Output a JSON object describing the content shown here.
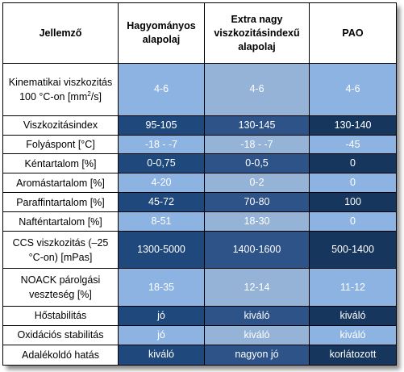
{
  "header": {
    "col1": "Jellemző",
    "col2": "Hagyományos alapolaj",
    "col3": "Extra nagy viszkozitásindexű alapolaj",
    "col4": "PAO"
  },
  "rows": [
    {
      "label_pre": "Kinematikai viszkozitás 100 °C-on [mm",
      "label_sup": "2",
      "label_post": "/s]",
      "values": [
        "4-6",
        "4-6",
        "4-6"
      ]
    },
    {
      "label": "Viszkozitásindex",
      "values": [
        "95-105",
        "130-145",
        "130-140"
      ]
    },
    {
      "label": "Folyáspont [°C]",
      "values": [
        "-18 - -7",
        "-18 - -7",
        "-45"
      ]
    },
    {
      "label": "Kéntartalom [%]",
      "values": [
        "0-0,75",
        "0-0,5",
        "0"
      ]
    },
    {
      "label": "Aromástartalom [%]",
      "values": [
        "4-20",
        "0-2",
        "0"
      ]
    },
    {
      "label": "Paraffintartalom [%]",
      "values": [
        "45-72",
        "70-80",
        "100"
      ]
    },
    {
      "label": "Nafténtartalom [%]",
      "values": [
        "8-51",
        "18-30",
        "0"
      ]
    },
    {
      "label": "CCS viszkozitás (–25 °C-on) [mPas]",
      "values": [
        "1300-5000",
        "1400-1600",
        "500-1400"
      ]
    },
    {
      "label": "NOACK párolgási veszteség [%]",
      "values": [
        "18-35",
        "12-14",
        "11-12"
      ]
    },
    {
      "label": "Hőstabilitás",
      "values": [
        "jó",
        "kiváló",
        "kiváló"
      ]
    },
    {
      "label": "Oxidációs stabilitás",
      "values": [
        "jó",
        "kiváló",
        "kiváló"
      ]
    },
    {
      "label": "Adalékoldó hatás",
      "values": [
        "kiváló",
        "nagyon jó",
        "korlátozott"
      ]
    }
  ],
  "colors": {
    "light": "#8db3e2",
    "dark": "#1f497d",
    "text_on_fill": "#ffffff",
    "border": "#000000"
  }
}
